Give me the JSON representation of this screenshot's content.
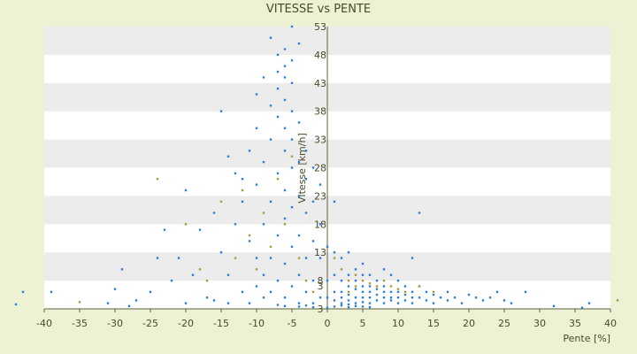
{
  "chart_data": {
    "type": "scatter",
    "title": "VITESSE vs PENTE",
    "xlabel": "Pente [%]",
    "ylabel": "Vitesse [km/h]",
    "xlim": [
      -40,
      40
    ],
    "ylim": [
      3,
      53
    ],
    "x_ticks": [
      "-40",
      "-35",
      "-30",
      "-25",
      "-20",
      "-15",
      "-10",
      "-5",
      "0",
      "5",
      "10",
      "15",
      "20",
      "25",
      "30",
      "35",
      "40"
    ],
    "y_ticks": [
      "3",
      "3",
      "8",
      "13",
      "18",
      "23",
      "28",
      "33",
      "38",
      "43",
      "48",
      "53"
    ],
    "y_tick_values": [
      3,
      3,
      8,
      13,
      18,
      23,
      28,
      33,
      38,
      43,
      48,
      53
    ],
    "grid": "horizontal bands",
    "legend": "none",
    "colors": {
      "page_background": "#edf2d4",
      "band_light": "#ffffff",
      "band_shaded": "#ececec",
      "axis": "#606040",
      "text": "#4a4a2a",
      "series_primary": "#2f7fd8",
      "series_secondary": "#a89a38"
    },
    "series": [
      {
        "color": "#2f7fd8",
        "points": [
          [
            -44,
            3.8
          ],
          [
            -43,
            6.0
          ],
          [
            -39,
            6.0
          ],
          [
            -31,
            4.0
          ],
          [
            -30,
            6.5
          ],
          [
            -29,
            10
          ],
          [
            -28,
            3.5
          ],
          [
            -27,
            4.5
          ],
          [
            -25,
            6.0
          ],
          [
            -24,
            12
          ],
          [
            -23,
            17
          ],
          [
            -22,
            8
          ],
          [
            -21,
            12
          ],
          [
            -20,
            24
          ],
          [
            -19,
            9
          ],
          [
            -18,
            17
          ],
          [
            -17,
            5
          ],
          [
            -16,
            4.5
          ],
          [
            -16,
            20
          ],
          [
            -15,
            38
          ],
          [
            -15,
            13
          ],
          [
            -14,
            4
          ],
          [
            -14,
            9
          ],
          [
            -13,
            18
          ],
          [
            -13,
            27
          ],
          [
            -12,
            22
          ],
          [
            -12,
            6
          ],
          [
            -11,
            31
          ],
          [
            -11,
            15
          ],
          [
            -11,
            4
          ],
          [
            -10,
            41
          ],
          [
            -10,
            25
          ],
          [
            -10,
            12
          ],
          [
            -10,
            7
          ],
          [
            -9,
            29
          ],
          [
            -9,
            18
          ],
          [
            -9,
            44
          ],
          [
            -9,
            5
          ],
          [
            -8,
            51
          ],
          [
            -8,
            33
          ],
          [
            -8,
            22
          ],
          [
            -8,
            12
          ],
          [
            -8,
            6
          ],
          [
            -7,
            48
          ],
          [
            -7,
            45
          ],
          [
            -7,
            42
          ],
          [
            -7,
            37
          ],
          [
            -7,
            27
          ],
          [
            -7,
            16
          ],
          [
            -7,
            8
          ],
          [
            -6,
            49
          ],
          [
            -6,
            46
          ],
          [
            -6,
            44
          ],
          [
            -6,
            40
          ],
          [
            -6,
            35
          ],
          [
            -6,
            31
          ],
          [
            -6,
            24
          ],
          [
            -6,
            19
          ],
          [
            -6,
            11
          ],
          [
            -6,
            5
          ],
          [
            -5,
            53
          ],
          [
            -5,
            47
          ],
          [
            -5,
            43
          ],
          [
            -5,
            38
          ],
          [
            -5,
            33
          ],
          [
            -5,
            28
          ],
          [
            -5,
            21
          ],
          [
            -5,
            14
          ],
          [
            -5,
            7
          ],
          [
            -4,
            50
          ],
          [
            -4,
            36
          ],
          [
            -4,
            29
          ],
          [
            -4,
            23
          ],
          [
            -4,
            16
          ],
          [
            -4,
            9
          ],
          [
            -4,
            4
          ],
          [
            -3,
            31
          ],
          [
            -3,
            26
          ],
          [
            -3,
            20
          ],
          [
            -3,
            12
          ],
          [
            -3,
            6
          ],
          [
            -2,
            28
          ],
          [
            -2,
            22
          ],
          [
            -2,
            15
          ],
          [
            -2,
            8
          ],
          [
            -2,
            4
          ],
          [
            -1,
            25
          ],
          [
            -1,
            18
          ],
          [
            -1,
            12
          ],
          [
            -1,
            5
          ],
          [
            0,
            14
          ],
          [
            0,
            8
          ],
          [
            0,
            5
          ],
          [
            1,
            22
          ],
          [
            1,
            13
          ],
          [
            1,
            9
          ],
          [
            1,
            6
          ],
          [
            1,
            4.5
          ],
          [
            2,
            12
          ],
          [
            2,
            8
          ],
          [
            2,
            6
          ],
          [
            2,
            5
          ],
          [
            2,
            4
          ],
          [
            3,
            13
          ],
          [
            3,
            9
          ],
          [
            3,
            7
          ],
          [
            3,
            5.5
          ],
          [
            3,
            4.5
          ],
          [
            3,
            3.8
          ],
          [
            4,
            10
          ],
          [
            4,
            8
          ],
          [
            4,
            6.5
          ],
          [
            4,
            5
          ],
          [
            4,
            4
          ],
          [
            5,
            11
          ],
          [
            5,
            9
          ],
          [
            5,
            7
          ],
          [
            5,
            6
          ],
          [
            5,
            5
          ],
          [
            5,
            4.2
          ],
          [
            6,
            9
          ],
          [
            6,
            7
          ],
          [
            6,
            6
          ],
          [
            6,
            5
          ],
          [
            6,
            4
          ],
          [
            7,
            8
          ],
          [
            7,
            6.5
          ],
          [
            7,
            5.5
          ],
          [
            7,
            4.5
          ],
          [
            8,
            10
          ],
          [
            8,
            7
          ],
          [
            8,
            6
          ],
          [
            8,
            5
          ],
          [
            8,
            4
          ],
          [
            9,
            9
          ],
          [
            9,
            6
          ],
          [
            9,
            5
          ],
          [
            9,
            4.5
          ],
          [
            10,
            8
          ],
          [
            10,
            6
          ],
          [
            10,
            5
          ],
          [
            10,
            4
          ],
          [
            11,
            7
          ],
          [
            11,
            5.5
          ],
          [
            11,
            4.5
          ],
          [
            12,
            12
          ],
          [
            12,
            6
          ],
          [
            12,
            5
          ],
          [
            12,
            4
          ],
          [
            13,
            20
          ],
          [
            13,
            7
          ],
          [
            13,
            5
          ],
          [
            14,
            6
          ],
          [
            14,
            4.5
          ],
          [
            15,
            5.5
          ],
          [
            15,
            4
          ],
          [
            16,
            5
          ],
          [
            17,
            6
          ],
          [
            17,
            4.5
          ],
          [
            18,
            5
          ],
          [
            19,
            4
          ],
          [
            20,
            5.5
          ],
          [
            21,
            5
          ],
          [
            22,
            4.5
          ],
          [
            23,
            5
          ],
          [
            24,
            6
          ],
          [
            25,
            4.5
          ],
          [
            26,
            4
          ],
          [
            28,
            6
          ],
          [
            32,
            3.5
          ],
          [
            36,
            3.2
          ],
          [
            37,
            4
          ],
          [
            -14,
            30
          ],
          [
            -12,
            26
          ],
          [
            -10,
            35
          ],
          [
            -9,
            9
          ],
          [
            -8,
            39
          ],
          [
            -7,
            3.7
          ],
          [
            -6,
            3.5
          ],
          [
            -4,
            3.4
          ],
          [
            -3,
            3.6
          ],
          [
            -2,
            3.3
          ],
          [
            0,
            3.2
          ],
          [
            1,
            3.4
          ],
          [
            2,
            3.6
          ],
          [
            3,
            3.3
          ],
          [
            4,
            3.5
          ],
          [
            5,
            3.4
          ],
          [
            6,
            3.3
          ],
          [
            -20,
            4
          ]
        ]
      },
      {
        "color": "#a89a38",
        "points": [
          [
            -35,
            4.2
          ],
          [
            -24,
            26
          ],
          [
            -17,
            8
          ],
          [
            -15,
            22
          ],
          [
            -13,
            12
          ],
          [
            -12,
            24
          ],
          [
            -11,
            16
          ],
          [
            -10,
            10
          ],
          [
            -9,
            20
          ],
          [
            -8,
            14
          ],
          [
            -7,
            26
          ],
          [
            -6,
            18
          ],
          [
            -5,
            30
          ],
          [
            -4,
            12
          ],
          [
            -3,
            8
          ],
          [
            -2,
            6
          ],
          [
            1,
            12
          ],
          [
            2,
            10
          ],
          [
            3,
            8
          ],
          [
            3,
            6
          ],
          [
            4,
            9
          ],
          [
            4,
            7
          ],
          [
            5,
            8
          ],
          [
            6,
            7.5
          ],
          [
            7,
            7
          ],
          [
            8,
            8
          ],
          [
            9,
            7
          ],
          [
            10,
            6.5
          ],
          [
            11,
            6
          ],
          [
            13,
            7
          ],
          [
            15,
            6
          ],
          [
            -20,
            18
          ],
          [
            -18,
            10
          ],
          [
            41,
            4.5
          ]
        ]
      }
    ]
  }
}
